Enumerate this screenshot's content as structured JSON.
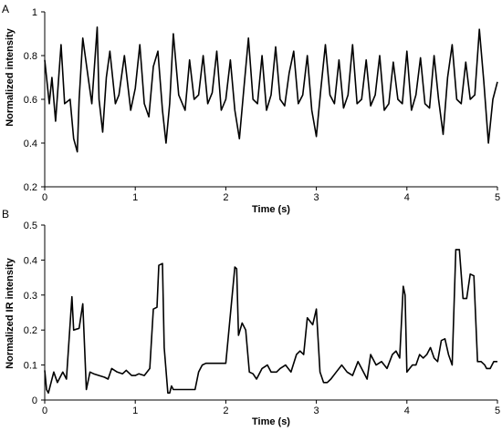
{
  "chart_data": [
    {
      "type": "line",
      "panel_label": "A",
      "xlabel": "Time (s)",
      "ylabel": "Normalized intensity",
      "xlim": [
        0,
        5
      ],
      "ylim": [
        0.2,
        1
      ],
      "xticks": [
        "0",
        "1",
        "2",
        "3",
        "4",
        "5"
      ],
      "yticks": [
        "0.2",
        "0.4",
        "0.6",
        "0.8",
        "1"
      ],
      "grid": false,
      "series": [
        {
          "x": [
            0,
            0.05,
            0.08,
            0.12,
            0.18,
            0.22,
            0.28,
            0.32,
            0.36,
            0.38,
            0.42,
            0.48,
            0.52,
            0.58,
            0.6,
            0.64,
            0.68,
            0.72,
            0.78,
            0.82,
            0.88,
            0.95,
            1.0,
            1.05,
            1.1,
            1.15,
            1.2,
            1.25,
            1.3,
            1.34,
            1.38,
            1.42,
            1.48,
            1.55,
            1.6,
            1.65,
            1.7,
            1.75,
            1.8,
            1.85,
            1.9,
            1.95,
            2.0,
            2.05,
            2.1,
            2.15,
            2.2,
            2.25,
            2.3,
            2.35,
            2.4,
            2.45,
            2.5,
            2.55,
            2.6,
            2.65,
            2.7,
            2.75,
            2.8,
            2.85,
            2.9,
            2.95,
            3.0,
            3.05,
            3.1,
            3.15,
            3.2,
            3.25,
            3.3,
            3.35,
            3.4,
            3.45,
            3.5,
            3.55,
            3.6,
            3.65,
            3.7,
            3.75,
            3.8,
            3.85,
            3.9,
            3.95,
            4.0,
            4.05,
            4.1,
            4.15,
            4.2,
            4.25,
            4.3,
            4.35,
            4.4,
            4.45,
            4.5,
            4.55,
            4.6,
            4.65,
            4.7,
            4.75,
            4.8,
            4.85,
            4.9,
            4.95,
            5.0
          ],
          "y": [
            0.78,
            0.58,
            0.7,
            0.5,
            0.85,
            0.58,
            0.6,
            0.42,
            0.36,
            0.6,
            0.88,
            0.7,
            0.58,
            0.93,
            0.6,
            0.45,
            0.7,
            0.82,
            0.58,
            0.62,
            0.8,
            0.55,
            0.65,
            0.85,
            0.58,
            0.52,
            0.75,
            0.82,
            0.55,
            0.4,
            0.58,
            0.9,
            0.62,
            0.55,
            0.78,
            0.6,
            0.62,
            0.8,
            0.58,
            0.63,
            0.82,
            0.55,
            0.6,
            0.78,
            0.55,
            0.42,
            0.65,
            0.88,
            0.6,
            0.58,
            0.8,
            0.55,
            0.62,
            0.84,
            0.6,
            0.57,
            0.72,
            0.82,
            0.58,
            0.62,
            0.8,
            0.55,
            0.43,
            0.65,
            0.85,
            0.62,
            0.58,
            0.78,
            0.56,
            0.62,
            0.85,
            0.58,
            0.6,
            0.78,
            0.57,
            0.62,
            0.8,
            0.55,
            0.58,
            0.77,
            0.6,
            0.58,
            0.82,
            0.55,
            0.62,
            0.79,
            0.58,
            0.56,
            0.8,
            0.6,
            0.44,
            0.7,
            0.85,
            0.6,
            0.58,
            0.77,
            0.6,
            0.62,
            0.92,
            0.68,
            0.4,
            0.6,
            0.68
          ]
        }
      ]
    },
    {
      "type": "line",
      "panel_label": "B",
      "xlabel": "Time (s)",
      "ylabel": "Normalized IR intensity",
      "xlim": [
        0,
        5
      ],
      "ylim": [
        0,
        0.5
      ],
      "xticks": [
        "0",
        "1",
        "2",
        "3",
        "4",
        "5"
      ],
      "yticks": [
        "0",
        "0.1",
        "0.2",
        "0.3",
        "0.4",
        "0.5"
      ],
      "grid": false,
      "series": [
        {
          "x": [
            0,
            0.02,
            0.04,
            0.1,
            0.14,
            0.2,
            0.24,
            0.3,
            0.32,
            0.38,
            0.42,
            0.46,
            0.5,
            0.54,
            0.6,
            0.66,
            0.7,
            0.74,
            0.8,
            0.86,
            0.9,
            0.96,
            1.0,
            1.04,
            1.1,
            1.16,
            1.2,
            1.24,
            1.26,
            1.3,
            1.32,
            1.36,
            1.38,
            1.4,
            1.42,
            1.46,
            1.5,
            1.55,
            1.6,
            1.66,
            1.7,
            1.72,
            1.74,
            1.78,
            1.82,
            1.9,
            2.0,
            2.1,
            2.12,
            2.14,
            2.18,
            2.22,
            2.26,
            2.3,
            2.34,
            2.4,
            2.46,
            2.5,
            2.56,
            2.6,
            2.66,
            2.72,
            2.78,
            2.82,
            2.86,
            2.9,
            2.96,
            3.0,
            3.04,
            3.08,
            3.12,
            3.16,
            3.22,
            3.28,
            3.34,
            3.4,
            3.46,
            3.5,
            3.56,
            3.6,
            3.66,
            3.72,
            3.78,
            3.84,
            3.88,
            3.92,
            3.96,
            3.98,
            4.0,
            4.06,
            4.1,
            4.14,
            4.18,
            4.22,
            4.26,
            4.3,
            4.34,
            4.38,
            4.42,
            4.46,
            4.5,
            4.54,
            4.58,
            4.62,
            4.66,
            4.7,
            4.74,
            4.78,
            4.82,
            4.86,
            4.88,
            4.92,
            4.94,
            4.96,
            4.98,
            5.0
          ],
          "y": [
            0.085,
            0.03,
            0.02,
            0.08,
            0.05,
            0.08,
            0.06,
            0.295,
            0.2,
            0.205,
            0.275,
            0.03,
            0.08,
            0.075,
            0.07,
            0.065,
            0.06,
            0.09,
            0.08,
            0.075,
            0.085,
            0.07,
            0.07,
            0.075,
            0.07,
            0.09,
            0.26,
            0.265,
            0.385,
            0.39,
            0.15,
            0.02,
            0.02,
            0.04,
            0.03,
            0.03,
            0.03,
            0.03,
            0.03,
            0.03,
            0.08,
            0.09,
            0.1,
            0.105,
            0.105,
            0.105,
            0.105,
            0.38,
            0.375,
            0.185,
            0.22,
            0.2,
            0.08,
            0.075,
            0.06,
            0.09,
            0.1,
            0.08,
            0.08,
            0.09,
            0.1,
            0.08,
            0.13,
            0.14,
            0.13,
            0.235,
            0.215,
            0.26,
            0.08,
            0.05,
            0.05,
            0.06,
            0.08,
            0.1,
            0.08,
            0.07,
            0.11,
            0.09,
            0.06,
            0.13,
            0.1,
            0.11,
            0.09,
            0.13,
            0.14,
            0.12,
            0.325,
            0.3,
            0.08,
            0.1,
            0.1,
            0.13,
            0.12,
            0.13,
            0.15,
            0.12,
            0.11,
            0.17,
            0.175,
            0.13,
            0.1,
            0.43,
            0.43,
            0.29,
            0.29,
            0.36,
            0.355,
            0.11,
            0.11,
            0.1,
            0.09,
            0.09,
            0.1,
            0.11,
            0.11,
            0.11
          ]
        }
      ]
    }
  ]
}
